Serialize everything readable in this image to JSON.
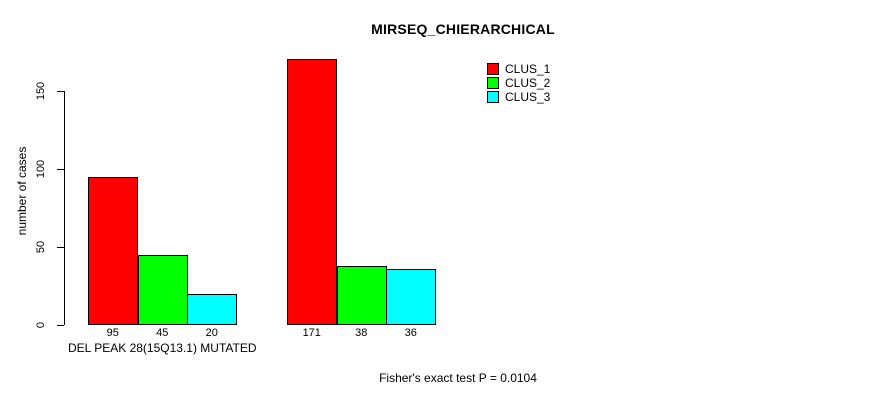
{
  "chart_data": {
    "type": "bar",
    "title": "MIRSEQ_CHIERARCHICAL",
    "ylabel": "number of cases",
    "xlabel": "",
    "yticks": [
      0,
      50,
      100,
      150
    ],
    "ylim": [
      0,
      175
    ],
    "grid": false,
    "legend_position": "top-right",
    "axis_color": "#000000",
    "bar_border_color": "#000000",
    "series": [
      {
        "name": "CLUS_1",
        "color": "#ff0000"
      },
      {
        "name": "CLUS_2",
        "color": "#00ff00"
      },
      {
        "name": "CLUS_3",
        "color": "#00ffff"
      }
    ],
    "groups": [
      {
        "label": "DEL PEAK 28(15Q13.1) MUTATED",
        "values": [
          95,
          45,
          20
        ]
      },
      {
        "label": "",
        "values": [
          171,
          38,
          36
        ]
      }
    ],
    "footnote": "Fisher's exact test P = 0.0104"
  }
}
